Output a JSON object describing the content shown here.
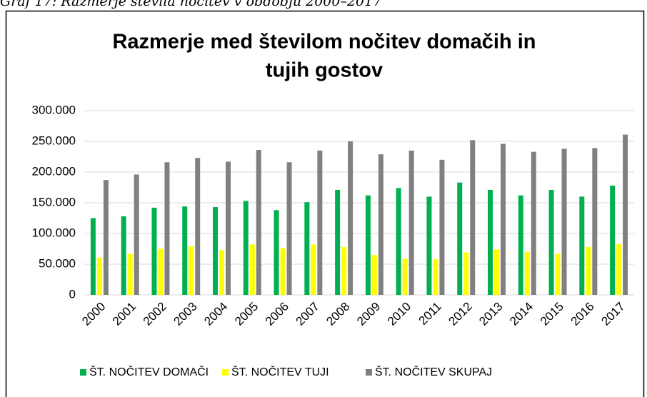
{
  "caption": "Graf 17: Razmerje števila nočitev v obdobju 2000–2017",
  "chart_data": {
    "type": "bar",
    "title": [
      "Razmerje med številom nočitev domačih in",
      "tujih gostov"
    ],
    "categories": [
      "2000",
      "2001",
      "2002",
      "2003",
      "2004",
      "2005",
      "2006",
      "2007",
      "2008",
      "2009",
      "2010",
      "2011",
      "2012",
      "2013",
      "2014",
      "2015",
      "2016",
      "2017"
    ],
    "series": [
      {
        "name": "ŠT. NOČITEV DOMAČI",
        "color": "#00b050",
        "values": [
          125000,
          128000,
          142000,
          144000,
          143000,
          153000,
          138000,
          151000,
          171000,
          162000,
          174000,
          160000,
          183000,
          171000,
          162000,
          171000,
          160000,
          178000
        ]
      },
      {
        "name": "ŠT. NOČITEV TUJI",
        "color": "#ffff00",
        "values": [
          61000,
          67000,
          75000,
          79000,
          73000,
          82000,
          76000,
          82000,
          78000,
          65000,
          59000,
          58000,
          69000,
          74000,
          70000,
          67000,
          78000,
          83000
        ]
      },
      {
        "name": "ŠT. NOČITEV SKUPAJ",
        "color": "#808080",
        "values": [
          187000,
          196000,
          216000,
          223000,
          217000,
          236000,
          216000,
          235000,
          250000,
          229000,
          235000,
          220000,
          252000,
          246000,
          233000,
          238000,
          239000,
          261000
        ]
      }
    ],
    "ylim": [
      0,
      300000
    ],
    "yticks": [
      0,
      {
        "value": 50000,
        "label": "50.000"
      },
      {
        "value": 100000,
        "label": "100.000"
      },
      {
        "value": 150000,
        "label": "150.000"
      },
      {
        "value": 200000,
        "label": "200.000"
      },
      {
        "value": 250000,
        "label": "250.000"
      },
      {
        "value": 300000,
        "label": "300.000"
      }
    ],
    "grid": true,
    "legend": "bottom"
  }
}
